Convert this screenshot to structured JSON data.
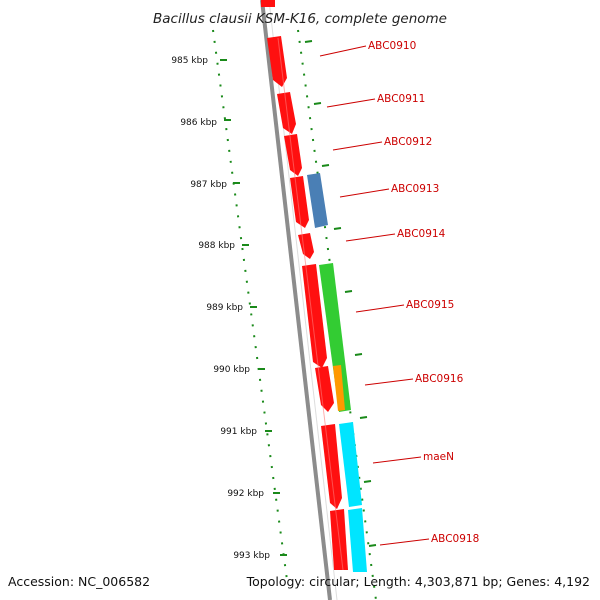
{
  "title": "Bacillus clausii KSM-K16, complete genome",
  "footer": {
    "accession": "Accession: NC_006582",
    "summary": "Topology: circular; Length: 4,303,871 bp; Genes: 4,192"
  },
  "colors": {
    "backbone": "#8c8c8c",
    "cds": "#ff1010",
    "cds_alt": "#4a7fb5",
    "rna_green": "#33cc33",
    "orange": "#ff9900",
    "cyan": "#00e5ff",
    "tick": "#1a8a1a",
    "label": "#cc0000"
  },
  "ticks": [
    {
      "label": "985 kbp"
    },
    {
      "label": "986 kbp"
    },
    {
      "label": "987 kbp"
    },
    {
      "label": "988 kbp"
    },
    {
      "label": "989 kbp"
    },
    {
      "label": "990 kbp"
    },
    {
      "label": "991 kbp"
    },
    {
      "label": "992 kbp"
    },
    {
      "label": "993 kbp"
    }
  ],
  "gene_labels": [
    {
      "name": "ABC0910"
    },
    {
      "name": "ABC0911"
    },
    {
      "name": "ABC0912"
    },
    {
      "name": "ABC0913"
    },
    {
      "name": "ABC0914"
    },
    {
      "name": "ABC0915"
    },
    {
      "name": "ABC0916"
    },
    {
      "name": "maeN"
    },
    {
      "name": "ABC0918"
    }
  ]
}
